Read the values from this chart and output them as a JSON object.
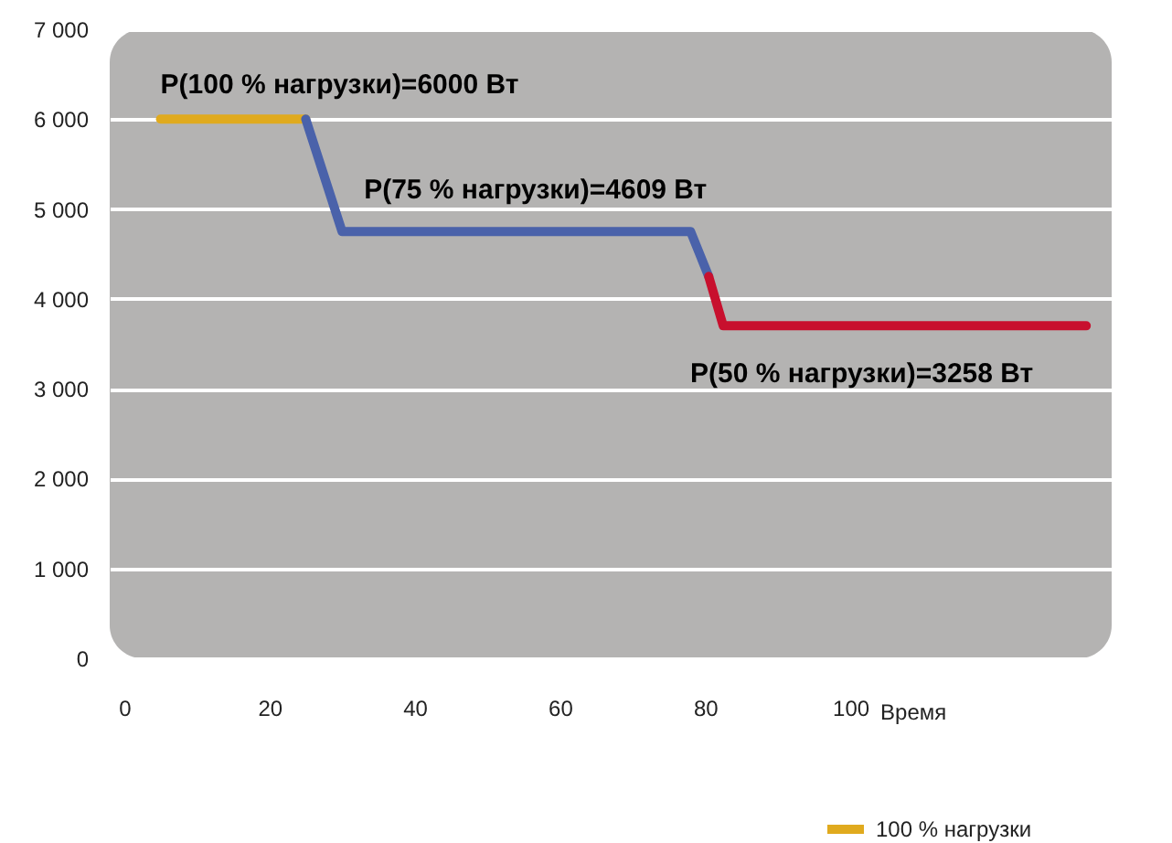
{
  "chart_data": {
    "type": "line",
    "xlabel": "Время",
    "xlim": [
      -2,
      136
    ],
    "xticks": [
      0,
      20,
      40,
      60,
      80,
      100
    ],
    "ylim": [
      0,
      7000
    ],
    "yticks": [
      {
        "value": 0,
        "label": "0"
      },
      {
        "value": 1000,
        "label": "1 000"
      },
      {
        "value": 2000,
        "label": "2 000"
      },
      {
        "value": 3000,
        "label": "3 000"
      },
      {
        "value": 4000,
        "label": "4 000"
      },
      {
        "value": 5000,
        "label": "5 000"
      },
      {
        "value": 6000,
        "label": "6 000"
      },
      {
        "value": 7000,
        "label": "7 000"
      }
    ],
    "grid": "y",
    "legend": "bottom right",
    "line_style": "solid",
    "series": [
      {
        "name": "100 % нагрузки",
        "color": "#e0aa1e",
        "x": [
          5,
          25
        ],
        "values": [
          6000,
          6000
        ]
      },
      {
        "color": "#4a62aa",
        "x": [
          25,
          30,
          78,
          80.5
        ],
        "values": [
          6000,
          4750,
          4750,
          4250
        ]
      },
      {
        "color": "#c8102e",
        "x": [
          80.5,
          82.5,
          132.5
        ],
        "values": [
          4250,
          3700,
          3700
        ]
      }
    ],
    "annotations": [
      "P(100 % нагрузки)=6000 Вт",
      "P(75 % нагрузки)=4609 Вт",
      "P(50 % нагрузки)=3258 Вт"
    ]
  }
}
